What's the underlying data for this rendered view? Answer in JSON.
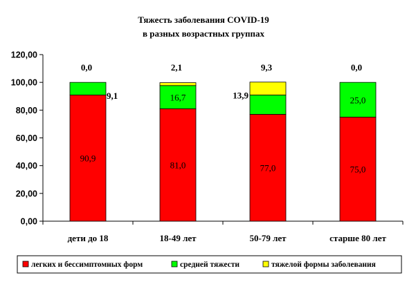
{
  "chart_data": {
    "type": "bar",
    "stacked": true,
    "title": [
      "Тяжесть заболевания COVID-19",
      "в разных возрастных группах"
    ],
    "categories": [
      "дети до 18",
      "18-49 лет",
      "50-79 лет",
      "старше 80 лет"
    ],
    "ylim": [
      0,
      120
    ],
    "yticks": [
      "0,00",
      "20,00",
      "40,00",
      "60,00",
      "80,00",
      "100,00",
      "120,00"
    ],
    "grid": false,
    "legend_position": "bottom",
    "series": [
      {
        "name": "легких и бессимптомных форм",
        "color": "#ff0000",
        "values": [
          90.9,
          81.0,
          77.0,
          75.0
        ],
        "labels": [
          "90,9",
          "81,0",
          "77,0",
          "75,0"
        ]
      },
      {
        "name": "средней тяжести",
        "color": "#00ff00",
        "values": [
          9.1,
          16.7,
          13.9,
          25.0
        ],
        "labels": [
          "9,1",
          "16,7",
          "13,9",
          "25,0"
        ]
      },
      {
        "name": "тяжелой формы заболевания",
        "color": "#ffff00",
        "values": [
          0.0,
          2.1,
          9.3,
          0.0
        ],
        "labels": [
          "0,0",
          "2,1",
          "9,3",
          "0,0"
        ]
      }
    ]
  }
}
